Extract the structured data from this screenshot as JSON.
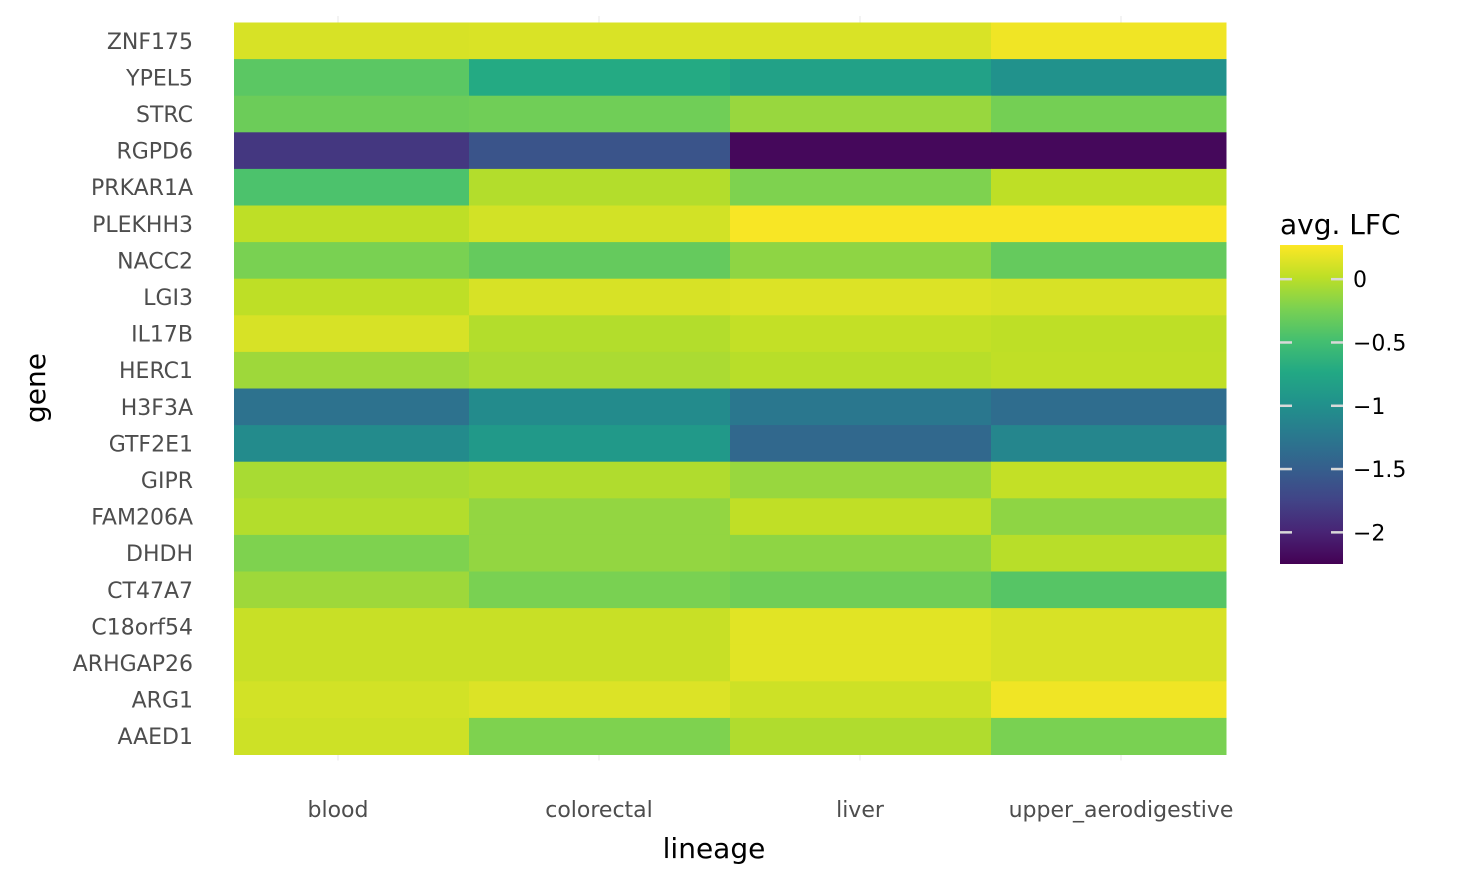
{
  "chart_data": {
    "type": "heatmap",
    "xlabel": "lineage",
    "ylabel": "gene",
    "x_categories": [
      "blood",
      "colorectal",
      "liver",
      "upper_aerodigestive"
    ],
    "y_categories": [
      "ZNF175",
      "YPEL5",
      "STRC",
      "RGPD6",
      "PRKAR1A",
      "PLEKHH3",
      "NACC2",
      "LGI3",
      "IL17B",
      "HERC1",
      "H3F3A",
      "GTF2E1",
      "GIPR",
      "FAM206A",
      "DHDH",
      "CT47A7",
      "C18orf54",
      "ARHGAP26",
      "ARG1",
      "AAED1"
    ],
    "values": [
      [
        0.12,
        0.13,
        0.13,
        0.22
      ],
      [
        -0.38,
        -0.72,
        -0.82,
        -0.98
      ],
      [
        -0.3,
        -0.28,
        -0.12,
        -0.26
      ],
      [
        -1.85,
        -1.6,
        -2.2,
        -2.2
      ],
      [
        -0.45,
        -0.02,
        -0.22,
        0.02
      ],
      [
        0.02,
        0.1,
        0.25,
        0.25
      ],
      [
        -0.24,
        -0.33,
        -0.16,
        -0.33
      ],
      [
        0.02,
        0.12,
        0.14,
        0.12
      ],
      [
        0.12,
        -0.02,
        0.04,
        0.02
      ],
      [
        -0.1,
        -0.05,
        0.0,
        0.03
      ],
      [
        -1.3,
        -1.05,
        -1.25,
        -1.35
      ],
      [
        -1.05,
        -0.9,
        -1.4,
        -1.1
      ],
      [
        -0.06,
        -0.03,
        -0.12,
        0.04
      ],
      [
        -0.02,
        -0.14,
        0.03,
        -0.16
      ],
      [
        -0.22,
        -0.14,
        -0.16,
        0.0
      ],
      [
        -0.1,
        -0.24,
        -0.28,
        -0.4
      ],
      [
        0.06,
        0.06,
        0.16,
        0.12
      ],
      [
        0.06,
        0.06,
        0.16,
        0.12
      ],
      [
        0.1,
        0.14,
        0.08,
        0.22
      ],
      [
        0.08,
        -0.22,
        -0.03,
        -0.24
      ]
    ],
    "colorbar": {
      "title": "avg. LFC",
      "range": [
        -2.25,
        0.27
      ],
      "ticks": [
        0,
        -0.5,
        -1,
        -1.5,
        -2
      ],
      "tick_labels": [
        "0",
        "−0.5",
        "−1",
        "−1.5",
        "−2"
      ],
      "colormap": "viridis"
    },
    "grid": false,
    "legend_position": "right"
  }
}
